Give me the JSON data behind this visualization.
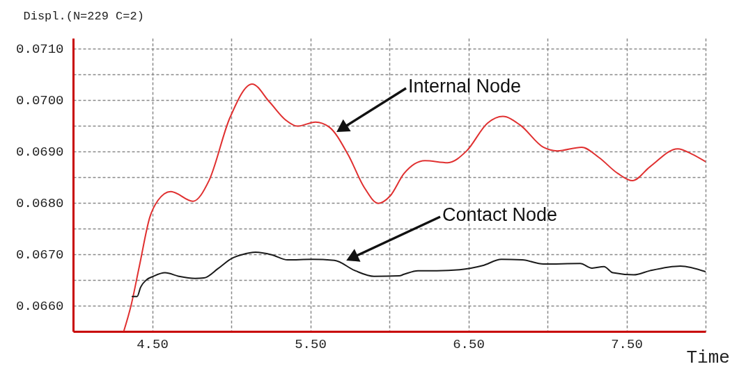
{
  "chart_data": {
    "type": "line",
    "xlabel": "Time",
    "ylabel": "Displ.(N=229 C=2)",
    "xlim": [
      4.0,
      8.0
    ],
    "xticks": [
      {
        "value": 4.5,
        "label": "4.50"
      },
      {
        "value": 5.0,
        "label": null
      },
      {
        "value": 5.5,
        "label": "5.50"
      },
      {
        "value": 6.0,
        "label": null
      },
      {
        "value": 6.5,
        "label": "6.50"
      },
      {
        "value": 7.0,
        "label": null
      },
      {
        "value": 7.5,
        "label": "7.50"
      },
      {
        "value": 8.0,
        "label": null
      }
    ],
    "ylim": [
      0.0655,
      0.0712
    ],
    "yticks": [
      {
        "value": 0.066,
        "label": "0.0660"
      },
      {
        "value": 0.0665,
        "label": null
      },
      {
        "value": 0.067,
        "label": "0.0670"
      },
      {
        "value": 0.0675,
        "label": null
      },
      {
        "value": 0.068,
        "label": "0.0680"
      },
      {
        "value": 0.0685,
        "label": null
      },
      {
        "value": 0.069,
        "label": "0.0690"
      },
      {
        "value": 0.0695,
        "label": null
      },
      {
        "value": 0.07,
        "label": "0.0700"
      },
      {
        "value": 0.0705,
        "label": null
      },
      {
        "value": 0.071,
        "label": "0.0710"
      }
    ],
    "grid": true,
    "series": [
      {
        "color": "#e03030",
        "x": [
          4.32,
          4.366,
          4.419,
          4.485,
          4.537,
          4.617,
          4.758,
          4.859,
          4.991,
          5.132,
          5.242,
          5.344,
          5.419,
          5.533,
          5.621,
          5.74,
          5.841,
          5.93,
          6.004,
          6.093,
          6.225,
          6.37,
          6.489,
          6.621,
          6.718,
          6.828,
          6.974,
          7.062,
          7.216,
          7.326,
          7.445,
          7.537,
          7.648,
          7.824,
          7.912,
          8.0
        ],
        "values": [
          0.0655,
          0.066,
          0.06677,
          0.06772,
          0.06805,
          0.06822,
          0.06803,
          0.06843,
          0.06965,
          0.07031,
          0.06996,
          0.06961,
          0.06949,
          0.06957,
          0.06947,
          0.06893,
          0.0683,
          0.06799,
          0.06813,
          0.06857,
          0.06882,
          0.06878,
          0.06901,
          0.06955,
          0.06968,
          0.06951,
          0.06908,
          0.06901,
          0.06908,
          0.06888,
          0.06857,
          0.06843,
          0.0687,
          0.06905,
          0.06895,
          0.0688
        ]
      },
      {
        "color": "#1a1a1a",
        "x": [
          4.374,
          4.405,
          4.427,
          4.463,
          4.507,
          4.581,
          4.67,
          4.771,
          4.828,
          4.916,
          5.004,
          5.066,
          5.154,
          5.256,
          5.357,
          5.507,
          5.652,
          5.784,
          5.903,
          6.062,
          6.093,
          6.181,
          6.3,
          6.445,
          6.59,
          6.709,
          6.841,
          6.974,
          7.207,
          7.282,
          7.357,
          7.414,
          7.546,
          7.648,
          7.841,
          8.0
        ],
        "values": [
          0.06618,
          0.06618,
          0.06636,
          0.0665,
          0.06657,
          0.06664,
          0.06657,
          0.06653,
          0.06654,
          0.06672,
          0.06692,
          0.06699,
          0.06704,
          0.06699,
          0.06689,
          0.0669,
          0.06688,
          0.06668,
          0.06657,
          0.06658,
          0.06661,
          0.06668,
          0.06668,
          0.0667,
          0.06678,
          0.0669,
          0.06689,
          0.06681,
          0.06682,
          0.06673,
          0.06676,
          0.06664,
          0.0666,
          0.06668,
          0.06677,
          0.06666
        ]
      }
    ],
    "annotations": [
      "Internal Node",
      "Contact Node"
    ]
  }
}
